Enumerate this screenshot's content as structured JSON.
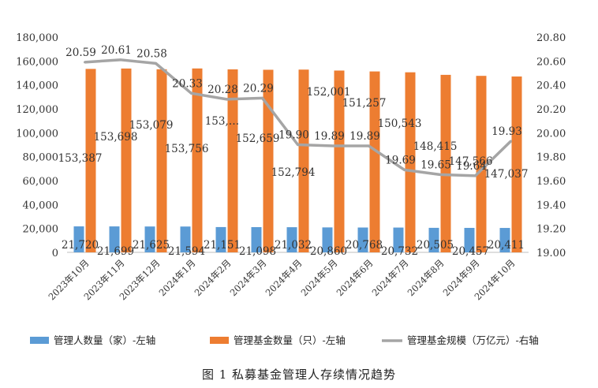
{
  "caption": "图 1  私募基金管理人存续情况趋势",
  "chart_data": {
    "type": "bar",
    "categories": [
      "2023年10月",
      "2023年11月",
      "2023年12月",
      "2024年1月",
      "2024年2月",
      "2024年3月",
      "2024年4月",
      "2024年5月",
      "2024年6月",
      "2024年7月",
      "2024年8月",
      "2024年9月",
      "2024年10月"
    ],
    "series": [
      {
        "name": "管理人数量（家）-左轴",
        "type": "bar",
        "axis": "left",
        "color": "#5B9BD5",
        "values": [
          21720,
          21699,
          21625,
          21594,
          21151,
          21098,
          21032,
          20860,
          20768,
          20732,
          20505,
          20457,
          20411
        ],
        "labels": [
          "21,720",
          "21,699",
          "21,625",
          "21,594",
          "21,151",
          "21,098",
          "21,032",
          "20,860",
          "20,768",
          "20,732",
          "20,505",
          "20,457",
          "20,411"
        ]
      },
      {
        "name": "管理基金数量（只）-左轴",
        "type": "bar",
        "axis": "left",
        "color": "#ED7D31",
        "values": [
          153387,
          153698,
          153079,
          153756,
          153000,
          152659,
          152794,
          152001,
          151257,
          150543,
          148415,
          147566,
          147037
        ],
        "labels": [
          "153,387",
          "153,698",
          "153,079",
          "153,756",
          "153,…",
          "152,659",
          "152,794",
          "152,001",
          "151,257",
          "150,543",
          "148,415",
          "147,566",
          "147,037"
        ]
      },
      {
        "name": "管理基金规模（万亿元）-右轴",
        "type": "line",
        "axis": "right",
        "color": "#A5A5A5",
        "values": [
          20.59,
          20.61,
          20.58,
          20.33,
          20.28,
          20.29,
          19.9,
          19.89,
          19.89,
          19.69,
          19.65,
          19.64,
          19.93
        ],
        "labels": [
          "20.59",
          "20.61",
          "20.58",
          "20.33",
          "20.28",
          "20.29",
          "19.90",
          "19.89",
          "19.89",
          "19.69",
          "19.65",
          "19.64",
          "19.93"
        ]
      }
    ],
    "y_left": {
      "min": 0,
      "max": 180000,
      "step": 20000,
      "ticks": [
        "0",
        "20,000",
        "40,000",
        "60,000",
        "80,000",
        "100,000",
        "120,000",
        "140,000",
        "160,000",
        "180,000"
      ]
    },
    "y_right": {
      "min": 19.0,
      "max": 20.8,
      "step": 0.2,
      "ticks": [
        "19.00",
        "19.20",
        "19.40",
        "19.60",
        "19.80",
        "20.00",
        "20.20",
        "20.40",
        "20.60",
        "20.80"
      ]
    },
    "grid": false,
    "legend_position": "bottom"
  }
}
